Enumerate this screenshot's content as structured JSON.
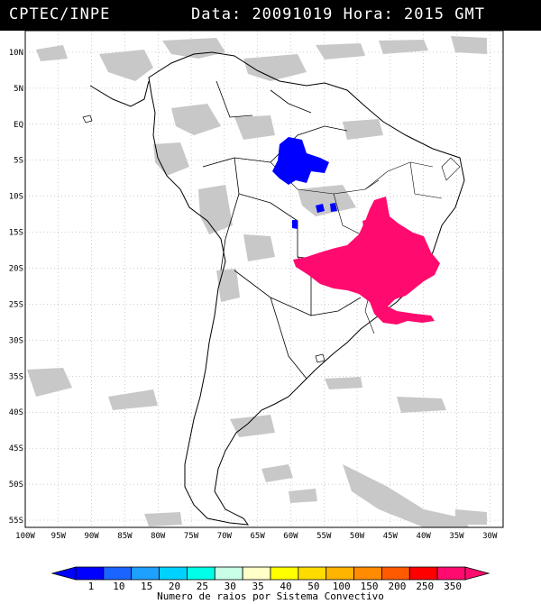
{
  "header": {
    "org": "CPTEC/INPE",
    "date_label": "Data:",
    "date": "20091019",
    "hour_label": "Hora:",
    "hour": "2015",
    "tz": "GMT"
  },
  "map": {
    "lat_labels": [
      "10N",
      "5N",
      "EQ",
      "5S",
      "10S",
      "15S",
      "20S",
      "25S",
      "30S",
      "35S",
      "40S",
      "45S",
      "50S",
      "55S"
    ],
    "lon_labels": [
      "100W",
      "95W",
      "90W",
      "85W",
      "80W",
      "75W",
      "70W",
      "65W",
      "60W",
      "55W",
      "50W",
      "45W",
      "40W",
      "35W",
      "30W"
    ],
    "lon_range": [
      -100,
      -28
    ],
    "lat_range": [
      -56,
      13
    ],
    "systems": [
      {
        "name": "amazon-system",
        "color": "#0000ff",
        "count_class": "1"
      },
      {
        "name": "southeast-system",
        "color": "#ff0a6e",
        "count_class": "350"
      }
    ],
    "cloud_color": "#c8c8c8"
  },
  "legend": {
    "title": "Numero de raios por Sistema Convectivo",
    "values": [
      "1",
      "10",
      "15",
      "20",
      "25",
      "30",
      "35",
      "40",
      "50",
      "100",
      "150",
      "200",
      "250",
      "350"
    ],
    "colors": [
      "#0000ff",
      "#1a64ff",
      "#1ea0ff",
      "#00d2ff",
      "#00ffe6",
      "#c8ffe6",
      "#ffffc8",
      "#ffff00",
      "#ffdc00",
      "#ffb400",
      "#ff8c00",
      "#ff5a00",
      "#ff0000",
      "#ff0a6e"
    ]
  }
}
